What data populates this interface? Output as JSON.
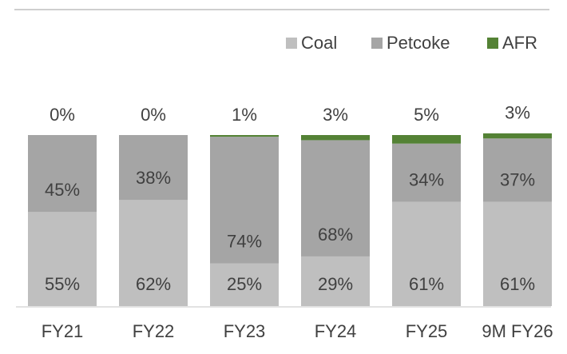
{
  "chart_data": {
    "type": "stacked_bar",
    "categories": [
      "FY21",
      "FY22",
      "FY23",
      "FY24",
      "FY25",
      "9M FY26"
    ],
    "series": [
      {
        "name": "Coal",
        "color": "#bfbfbf",
        "values": [
          55,
          62,
          25,
          29,
          61,
          61
        ],
        "value_labels": [
          "55%",
          "62%",
          "25%",
          "29%",
          "61%",
          "61%"
        ]
      },
      {
        "name": "Petcoke",
        "color": "#a5a5a5",
        "values": [
          45,
          38,
          74,
          68,
          34,
          37
        ],
        "value_labels": [
          "45%",
          "38%",
          "74%",
          "68%",
          "34%",
          "37%"
        ]
      },
      {
        "name": "AFR",
        "color": "#548235",
        "values": [
          0,
          0,
          1,
          3,
          5,
          3
        ],
        "value_labels": [
          "0%",
          "0%",
          "1%",
          "3%",
          "5%",
          "3%"
        ]
      }
    ],
    "ylim": [
      0,
      100
    ],
    "legend": "top-right"
  }
}
